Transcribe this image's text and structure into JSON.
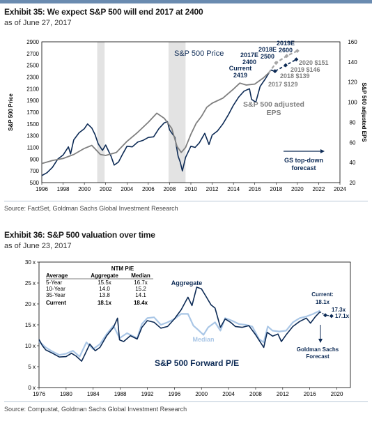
{
  "exhibit35": {
    "title": "Exhibit 35: We expect S&P 500 will end 2017 at 2400",
    "subtitle": "as of June 27, 2017",
    "source": "Source: FactSet, Goldman Sachs Global Investment Research"
  },
  "exhibit36": {
    "title": "Exhibit 36: S&P 500 valuation over time",
    "subtitle": "as of June 23, 2017",
    "source": "Source: Compustat, Goldman Sachs Global Investment Research"
  },
  "colors": {
    "navy": "#0c2a55",
    "gray": "#7f7f7f",
    "dashed_gray": "#a6a6a6",
    "light_blue": "#a9c6e6",
    "recession": "#e3e3e3"
  },
  "chart_data": [
    {
      "type": "line",
      "ylabel_left": "S&P 500 Price",
      "ylabel_right": "S&P 500 adjusted EPS",
      "x_ticks": [
        1996,
        1998,
        2000,
        2002,
        2004,
        2006,
        2008,
        2010,
        2012,
        2014,
        2016,
        2018,
        2020,
        2022,
        2024
      ],
      "y_left_ticks": [
        500,
        700,
        900,
        1100,
        1300,
        1500,
        1700,
        1900,
        2100,
        2300,
        2500,
        2700,
        2900
      ],
      "y_right_ticks": [
        20,
        40,
        60,
        80,
        100,
        120,
        140,
        160
      ],
      "xlim": [
        1996,
        2024
      ],
      "ylim_left": [
        500,
        2900
      ],
      "ylim_right": [
        20,
        160
      ],
      "recession_bands": [
        [
          2001.2,
          2001.9
        ],
        [
          2007.9,
          2009.5
        ]
      ],
      "series": [
        {
          "name": "S&P 500 Price",
          "axis": "left",
          "points": [
            [
              1996.0,
              620
            ],
            [
              1996.5,
              670
            ],
            [
              1997.0,
              760
            ],
            [
              1997.5,
              900
            ],
            [
              1998.0,
              970
            ],
            [
              1998.5,
              1110
            ],
            [
              1998.7,
              990
            ],
            [
              1999.0,
              1230
            ],
            [
              1999.5,
              1350
            ],
            [
              2000.0,
              1420
            ],
            [
              2000.3,
              1500
            ],
            [
              2000.7,
              1430
            ],
            [
              2001.0,
              1320
            ],
            [
              2001.3,
              1160
            ],
            [
              2001.7,
              1050
            ],
            [
              2002.0,
              1140
            ],
            [
              2002.5,
              950
            ],
            [
              2002.8,
              800
            ],
            [
              2003.2,
              850
            ],
            [
              2003.6,
              990
            ],
            [
              2004.0,
              1120
            ],
            [
              2004.5,
              1110
            ],
            [
              2005.0,
              1190
            ],
            [
              2005.5,
              1220
            ],
            [
              2006.0,
              1270
            ],
            [
              2006.5,
              1280
            ],
            [
              2007.0,
              1420
            ],
            [
              2007.5,
              1520
            ],
            [
              2007.8,
              1540
            ],
            [
              2008.0,
              1400
            ],
            [
              2008.5,
              1270
            ],
            [
              2008.8,
              950
            ],
            [
              2009.0,
              850
            ],
            [
              2009.2,
              700
            ],
            [
              2009.5,
              930
            ],
            [
              2010.0,
              1120
            ],
            [
              2010.4,
              1100
            ],
            [
              2010.8,
              1180
            ],
            [
              2011.3,
              1340
            ],
            [
              2011.7,
              1150
            ],
            [
              2012.0,
              1310
            ],
            [
              2012.5,
              1380
            ],
            [
              2013.0,
              1500
            ],
            [
              2013.5,
              1650
            ],
            [
              2014.0,
              1820
            ],
            [
              2014.5,
              1960
            ],
            [
              2015.0,
              2060
            ],
            [
              2015.5,
              2100
            ],
            [
              2015.7,
              1920
            ],
            [
              2016.1,
              1870
            ],
            [
              2016.5,
              2140
            ],
            [
              2017.0,
              2270
            ],
            [
              2017.5,
              2419
            ]
          ]
        },
        {
          "name": "S&P 500 adjusted EPS",
          "axis": "right",
          "points": [
            [
              1996.0,
              39
            ],
            [
              1997.0,
              42
            ],
            [
              1998.0,
              44
            ],
            [
              1999.0,
              48
            ],
            [
              2000.0,
              54
            ],
            [
              2000.7,
              57
            ],
            [
              2001.5,
              48
            ],
            [
              2002.0,
              47
            ],
            [
              2003.0,
              50
            ],
            [
              2004.0,
              61
            ],
            [
              2005.0,
              70
            ],
            [
              2006.0,
              80
            ],
            [
              2006.8,
              89
            ],
            [
              2007.5,
              84
            ],
            [
              2008.2,
              74
            ],
            [
              2008.7,
              56
            ],
            [
              2009.1,
              50
            ],
            [
              2009.5,
              55
            ],
            [
              2010.0,
              68
            ],
            [
              2010.5,
              79
            ],
            [
              2011.0,
              86
            ],
            [
              2011.5,
              95
            ],
            [
              2012.0,
              99
            ],
            [
              2013.0,
              104
            ],
            [
              2014.0,
              113
            ],
            [
              2014.6,
              119
            ],
            [
              2015.2,
              117
            ],
            [
              2016.0,
              118
            ],
            [
              2016.8,
              124
            ],
            [
              2017.3,
              129
            ]
          ]
        },
        {
          "name": "GS top-down forecast",
          "axis": "left",
          "style": "dashed",
          "points": [
            [
              2017.5,
              2419
            ],
            [
              2017.9,
              2400
            ],
            [
              2018.9,
              2500
            ],
            [
              2019.9,
              2600
            ]
          ]
        },
        {
          "name": "EPS forecast",
          "axis": "right",
          "style": "dashed",
          "points": [
            [
              2017.3,
              129
            ],
            [
              2018.0,
              139
            ],
            [
              2019.0,
              146
            ],
            [
              2020.0,
              151
            ]
          ]
        }
      ],
      "annotations": [
        "S&P 500 Price",
        "Current",
        "2419",
        "2017E",
        "2400",
        "2018E",
        "2500",
        "2019E",
        "2600",
        "2020 $151",
        "2019 $146",
        "2018 $139",
        "2017 $129",
        "S&P 500 adjusted",
        "EPS",
        "GS top-down",
        "forecast"
      ]
    },
    {
      "type": "line",
      "title": "S&P 500 Forward P/E",
      "x_ticks": [
        1976,
        1980,
        1984,
        1988,
        1992,
        1996,
        2000,
        2004,
        2008,
        2012,
        2016,
        2020
      ],
      "y_ticks": [
        "0 x",
        "5 x",
        "10 x",
        "15 x",
        "20 x",
        "25 x",
        "30 x"
      ],
      "xlim": [
        1976,
        2022
      ],
      "ylim": [
        0,
        30
      ],
      "series": [
        {
          "name": "Aggregate",
          "points": [
            [
              1976.0,
              11.5
            ],
            [
              1976.5,
              10
            ],
            [
              1977,
              9
            ],
            [
              1978,
              8.2
            ],
            [
              1979,
              7.3
            ],
            [
              1980,
              7.4
            ],
            [
              1980.8,
              8.2
            ],
            [
              1981.5,
              7.5
            ],
            [
              1982.3,
              6.3
            ],
            [
              1982.8,
              8
            ],
            [
              1983.5,
              10.4
            ],
            [
              1984.3,
              8.8
            ],
            [
              1985,
              9.6
            ],
            [
              1986,
              12.4
            ],
            [
              1987,
              14.4
            ],
            [
              1987.6,
              16.6
            ],
            [
              1987.9,
              11.4
            ],
            [
              1988.5,
              11
            ],
            [
              1989.5,
              12.4
            ],
            [
              1990.5,
              11.6
            ],
            [
              1991.2,
              14.4
            ],
            [
              1992,
              16
            ],
            [
              1993,
              15.6
            ],
            [
              1994,
              14.2
            ],
            [
              1995,
              14.6
            ],
            [
              1996,
              16.4
            ],
            [
              1997,
              18.6
            ],
            [
              1998,
              21.6
            ],
            [
              1998.6,
              19.6
            ],
            [
              1999.3,
              24
            ],
            [
              2000,
              23.6
            ],
            [
              2000.6,
              22
            ],
            [
              2001.4,
              19.8
            ],
            [
              2002,
              19
            ],
            [
              2002.8,
              14.4
            ],
            [
              2003.5,
              16.4
            ],
            [
              2004.3,
              15.6
            ],
            [
              2005,
              14.6
            ],
            [
              2006,
              14.4
            ],
            [
              2007,
              14.8
            ],
            [
              2008,
              12.6
            ],
            [
              2008.8,
              10.6
            ],
            [
              2009.2,
              9.6
            ],
            [
              2009.7,
              13.2
            ],
            [
              2010.5,
              12.3
            ],
            [
              2011.3,
              12.8
            ],
            [
              2011.8,
              11
            ],
            [
              2012.5,
              12.6
            ],
            [
              2013.5,
              14.6
            ],
            [
              2014.5,
              15.8
            ],
            [
              2015.5,
              16.6
            ],
            [
              2016.1,
              15.4
            ],
            [
              2016.8,
              16.9
            ],
            [
              2017.5,
              18.1
            ]
          ]
        },
        {
          "name": "Median",
          "points": [
            [
              1976,
              11
            ],
            [
              1977,
              9.6
            ],
            [
              1978,
              8.6
            ],
            [
              1979,
              7.8
            ],
            [
              1980,
              8.1
            ],
            [
              1981,
              8.8
            ],
            [
              1982,
              7.4
            ],
            [
              1983,
              10.8
            ],
            [
              1984,
              9.2
            ],
            [
              1985,
              10.4
            ],
            [
              1986,
              12.8
            ],
            [
              1987,
              14.8
            ],
            [
              1987.9,
              11.8
            ],
            [
              1989,
              13
            ],
            [
              1990.5,
              11.8
            ],
            [
              1991.2,
              15.2
            ],
            [
              1992,
              16.6
            ],
            [
              1993,
              16.8
            ],
            [
              1994,
              15
            ],
            [
              1995,
              15.6
            ],
            [
              1996,
              16.4
            ],
            [
              1997,
              17.6
            ],
            [
              1998,
              17.6
            ],
            [
              1998.8,
              14.8
            ],
            [
              1999.5,
              13.8
            ],
            [
              2000.3,
              12.6
            ],
            [
              2001,
              14.4
            ],
            [
              2002,
              15.6
            ],
            [
              2002.8,
              13.6
            ],
            [
              2003.5,
              16.6
            ],
            [
              2004.5,
              16
            ],
            [
              2005.5,
              15.2
            ],
            [
              2006.5,
              15
            ],
            [
              2007.5,
              14.6
            ],
            [
              2008.5,
              11.6
            ],
            [
              2009.2,
              10.8
            ],
            [
              2009.8,
              14.6
            ],
            [
              2010.5,
              13.6
            ],
            [
              2011.5,
              13.4
            ],
            [
              2012.5,
              13.6
            ],
            [
              2013.5,
              15.6
            ],
            [
              2014.5,
              16.6
            ],
            [
              2015.5,
              17
            ],
            [
              2016.5,
              17.6
            ],
            [
              2017.5,
              18.4
            ]
          ]
        },
        {
          "name": "Goldman Sachs Forecast",
          "style": "dotted",
          "points": [
            [
              2017.5,
              18.1
            ],
            [
              2018.3,
              17.3
            ],
            [
              2019.2,
              17.1
            ]
          ]
        }
      ],
      "table": {
        "header_top": "NTM P/E",
        "columns": [
          "Average",
          "Aggregate",
          "Median"
        ],
        "rows": [
          [
            "5-Year",
            "15.5x",
            "16.7x"
          ],
          [
            "10-Year",
            "14.0",
            "15.2"
          ],
          [
            "35-Year",
            "13.8",
            "14.1"
          ],
          [
            "Current",
            "18.1x",
            "18.4x"
          ]
        ]
      },
      "annotations": [
        "Aggregate",
        "Median",
        "Current:",
        "18.1x",
        "17.3x",
        "17.1x",
        "Goldman Sachs",
        "Forecast"
      ]
    }
  ]
}
